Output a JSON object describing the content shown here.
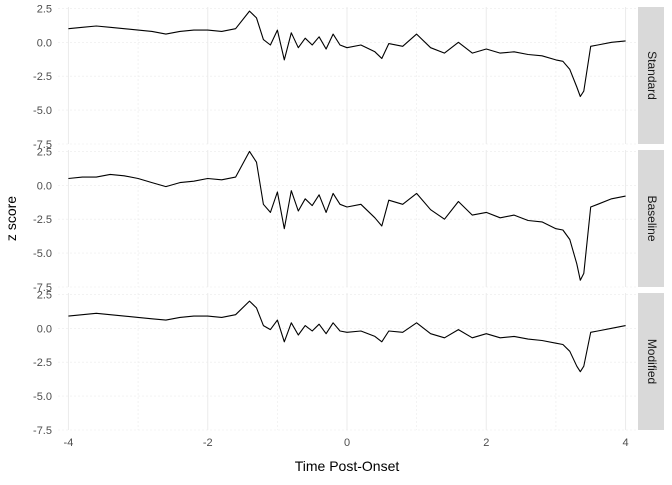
{
  "chart_data": {
    "type": "line",
    "xlabel": "Time Post-Onset",
    "ylabel": "z score",
    "xlim": [
      -4.15,
      4.15
    ],
    "ylim": [
      -7.5,
      2.6
    ],
    "x_ticks": [
      -4,
      -2,
      0,
      2,
      4
    ],
    "x_tick_labels": [
      "-4",
      "-2",
      "0",
      "2",
      "4"
    ],
    "y_ticks": [
      2.5,
      0,
      -2.5,
      -5,
      -7.5
    ],
    "y_tick_labels": [
      "2.5",
      "0.0",
      "-2.5",
      "-5.0",
      "-7.5"
    ],
    "grid": true,
    "facets": [
      {
        "name": "Standard",
        "x": [
          -4.0,
          -3.8,
          -3.6,
          -3.4,
          -3.2,
          -3.0,
          -2.8,
          -2.6,
          -2.4,
          -2.2,
          -2.0,
          -1.8,
          -1.6,
          -1.4,
          -1.3,
          -1.2,
          -1.1,
          -1.0,
          -0.9,
          -0.8,
          -0.7,
          -0.6,
          -0.5,
          -0.4,
          -0.3,
          -0.2,
          -0.1,
          0.0,
          0.2,
          0.4,
          0.5,
          0.6,
          0.8,
          1.0,
          1.2,
          1.4,
          1.6,
          1.8,
          2.0,
          2.2,
          2.4,
          2.6,
          2.8,
          3.0,
          3.1,
          3.2,
          3.3,
          3.35,
          3.4,
          3.5,
          3.6,
          3.8,
          4.0
        ],
        "y": [
          1.0,
          1.1,
          1.2,
          1.1,
          1.0,
          0.9,
          0.8,
          0.6,
          0.8,
          0.9,
          0.9,
          0.8,
          1.0,
          2.3,
          1.8,
          0.2,
          -0.2,
          0.9,
          -1.3,
          0.7,
          -0.4,
          0.3,
          -0.2,
          0.4,
          -0.5,
          0.6,
          -0.2,
          -0.4,
          -0.2,
          -0.7,
          -1.2,
          -0.1,
          -0.3,
          0.6,
          -0.4,
          -0.8,
          0.0,
          -0.8,
          -0.5,
          -0.8,
          -0.7,
          -0.9,
          -1.0,
          -1.3,
          -1.4,
          -2.0,
          -3.3,
          -4.0,
          -3.6,
          -0.3,
          -0.2,
          0.0,
          0.1
        ]
      },
      {
        "name": "Baseline",
        "x": [
          -4.0,
          -3.8,
          -3.6,
          -3.4,
          -3.2,
          -3.0,
          -2.8,
          -2.6,
          -2.4,
          -2.2,
          -2.0,
          -1.8,
          -1.6,
          -1.4,
          -1.3,
          -1.2,
          -1.1,
          -1.0,
          -0.9,
          -0.8,
          -0.7,
          -0.6,
          -0.5,
          -0.4,
          -0.3,
          -0.2,
          -0.1,
          0.0,
          0.2,
          0.4,
          0.5,
          0.6,
          0.8,
          1.0,
          1.2,
          1.4,
          1.6,
          1.8,
          2.0,
          2.2,
          2.4,
          2.6,
          2.8,
          3.0,
          3.1,
          3.2,
          3.3,
          3.35,
          3.4,
          3.5,
          3.6,
          3.8,
          4.0
        ],
        "y": [
          0.5,
          0.6,
          0.6,
          0.8,
          0.7,
          0.5,
          0.2,
          -0.1,
          0.2,
          0.3,
          0.5,
          0.4,
          0.6,
          2.5,
          1.7,
          -1.4,
          -2.0,
          -0.5,
          -3.2,
          -0.4,
          -1.9,
          -1.0,
          -1.5,
          -0.7,
          -2.0,
          -0.6,
          -1.4,
          -1.6,
          -1.4,
          -2.4,
          -3.0,
          -1.1,
          -1.4,
          -0.6,
          -1.8,
          -2.5,
          -1.2,
          -2.2,
          -2.0,
          -2.4,
          -2.2,
          -2.6,
          -2.7,
          -3.2,
          -3.3,
          -4.0,
          -5.8,
          -7.0,
          -6.5,
          -1.6,
          -1.4,
          -1.0,
          -0.8
        ]
      },
      {
        "name": "Modified",
        "x": [
          -4.0,
          -3.8,
          -3.6,
          -3.4,
          -3.2,
          -3.0,
          -2.8,
          -2.6,
          -2.4,
          -2.2,
          -2.0,
          -1.8,
          -1.6,
          -1.4,
          -1.3,
          -1.2,
          -1.1,
          -1.0,
          -0.9,
          -0.8,
          -0.7,
          -0.6,
          -0.5,
          -0.4,
          -0.3,
          -0.2,
          -0.1,
          0.0,
          0.2,
          0.4,
          0.5,
          0.6,
          0.8,
          1.0,
          1.2,
          1.4,
          1.6,
          1.8,
          2.0,
          2.2,
          2.4,
          2.6,
          2.8,
          3.0,
          3.1,
          3.2,
          3.3,
          3.35,
          3.4,
          3.5,
          3.6,
          3.8,
          4.0
        ],
        "y": [
          0.9,
          1.0,
          1.1,
          1.0,
          0.9,
          0.8,
          0.7,
          0.6,
          0.8,
          0.9,
          0.9,
          0.8,
          1.0,
          2.0,
          1.5,
          0.2,
          -0.1,
          0.6,
          -1.0,
          0.4,
          -0.5,
          0.2,
          -0.2,
          0.3,
          -0.4,
          0.4,
          -0.2,
          -0.3,
          -0.2,
          -0.6,
          -1.0,
          -0.2,
          -0.3,
          0.4,
          -0.4,
          -0.7,
          -0.1,
          -0.7,
          -0.4,
          -0.7,
          -0.6,
          -0.8,
          -0.9,
          -1.1,
          -1.2,
          -1.7,
          -2.8,
          -3.2,
          -2.8,
          -0.3,
          -0.2,
          0.0,
          0.2
        ]
      }
    ]
  }
}
